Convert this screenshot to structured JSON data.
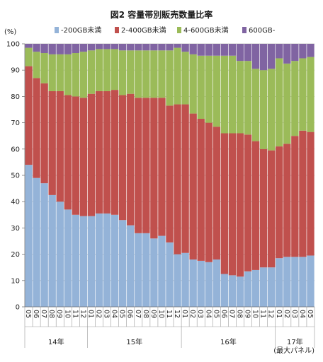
{
  "chart_data": {
    "type": "bar",
    "stacked": true,
    "title": "図2 容量帯別販売数量比率",
    "ylabel": "(%)",
    "ylim": [
      0,
      100
    ],
    "yticks": [
      0,
      10,
      20,
      30,
      40,
      50,
      60,
      70,
      80,
      90,
      100
    ],
    "categories": [
      "05",
      "06",
      "07",
      "08",
      "09",
      "10",
      "11",
      "12",
      "01",
      "02",
      "03",
      "04",
      "05",
      "06",
      "07",
      "08",
      "09",
      "10",
      "11",
      "12",
      "01",
      "02",
      "03",
      "04",
      "05",
      "06",
      "07",
      "08",
      "09",
      "10",
      "11",
      "12",
      "01",
      "02",
      "03",
      "04",
      "05"
    ],
    "year_groups": [
      {
        "label": "14年",
        "start": 0,
        "end": 7
      },
      {
        "label": "15年",
        "start": 8,
        "end": 19
      },
      {
        "label": "16年",
        "start": 20,
        "end": 31
      },
      {
        "label": "17年",
        "start": 32,
        "end": 36
      }
    ],
    "note": "(最大パネル)",
    "legend_position": "top",
    "series": [
      {
        "name": "-200GB未満",
        "color": "#94b3d8",
        "values": [
          54,
          49,
          47,
          42.5,
          40,
          37,
          35,
          34.5,
          34.5,
          35.5,
          35.5,
          35,
          33,
          31,
          28,
          28,
          26,
          27,
          24.5,
          20,
          20.5,
          18,
          17.5,
          17,
          18,
          12.5,
          12,
          11.5,
          13.5,
          14,
          15,
          15,
          18.5,
          19,
          19,
          19,
          19.5
        ]
      },
      {
        "name": "2-400GB未満",
        "color": "#c0504d",
        "values": [
          37.5,
          38,
          38,
          39.5,
          42,
          43.5,
          45,
          45,
          46.5,
          46.5,
          46.5,
          47.5,
          47.5,
          50,
          51.5,
          51.5,
          53.5,
          52.5,
          52,
          57,
          56.5,
          55.5,
          54,
          53,
          50.5,
          53.5,
          54,
          54.5,
          52,
          49,
          45,
          44.5,
          42.5,
          43,
          46,
          48,
          47
        ]
      },
      {
        "name": "4-600GB未満",
        "color": "#9bbb59",
        "values": [
          7,
          10,
          11.5,
          14,
          14,
          15.5,
          16.5,
          17.5,
          16.5,
          16,
          16,
          15.5,
          17,
          16.5,
          18,
          18,
          18,
          18,
          21,
          21.5,
          20,
          22.5,
          24,
          25.5,
          27,
          29.5,
          29.5,
          27.5,
          28,
          27.5,
          30,
          31,
          33.5,
          30.5,
          28.5,
          27.5,
          28.5
        ]
      },
      {
        "name": "600GB-",
        "color": "#8064a2",
        "values": [
          1.5,
          3,
          3.5,
          4,
          4,
          4,
          3.5,
          3,
          2.5,
          2,
          2,
          2,
          2.5,
          2.5,
          2.5,
          2.5,
          2.5,
          2.5,
          2.5,
          1.5,
          3,
          4,
          4.5,
          4.5,
          4.5,
          4.5,
          4.5,
          6.5,
          6.5,
          9.5,
          10,
          9.5,
          5.5,
          7.5,
          6.5,
          5.5,
          5
        ]
      }
    ]
  }
}
